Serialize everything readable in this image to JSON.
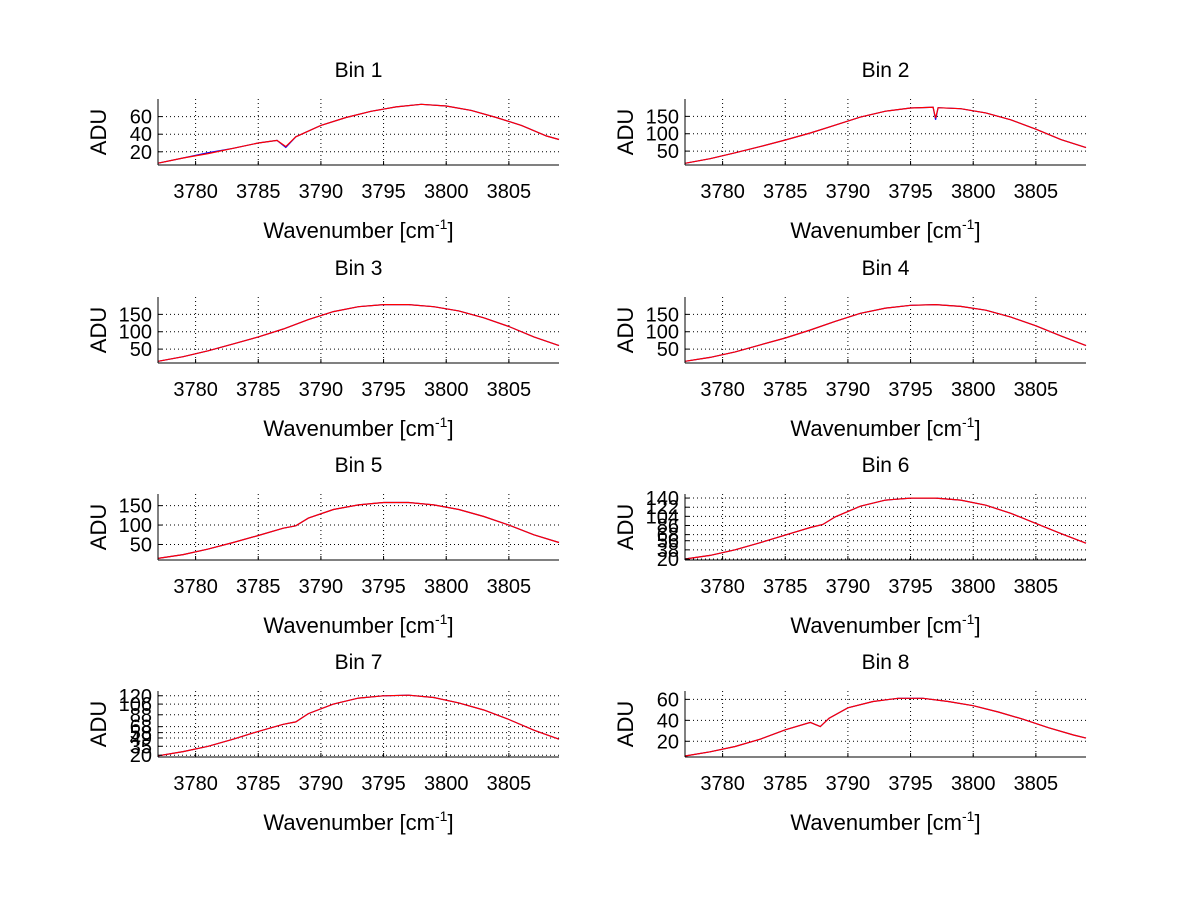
{
  "chart_data": [
    {
      "type": "line",
      "title": "Bin 1",
      "xlabel": "Wavenumber [cm",
      "xlabel_sup": "-1",
      "xlabel_close": "]",
      "ylabel": "ADU",
      "xlim": [
        3777,
        3809
      ],
      "ylim": [
        5,
        80
      ],
      "xticks": [
        3780,
        3785,
        3790,
        3795,
        3800,
        3805
      ],
      "xtick_labels": [
        "3780",
        "3785",
        "3790",
        "3795",
        "3800",
        "3805"
      ],
      "yticks": [
        20,
        40,
        60
      ],
      "ytick_labels": [
        "20",
        "40",
        "60"
      ],
      "grid": true,
      "series": [
        {
          "name": "blue",
          "color": "#0000ff",
          "x": [
            3777,
            3779,
            3781,
            3783,
            3785,
            3786.5,
            3787.2,
            3788,
            3790,
            3792,
            3794,
            3796,
            3798,
            3800,
            3802,
            3804,
            3806,
            3808,
            3809
          ],
          "values": [
            7,
            13,
            19,
            24,
            30,
            33,
            25,
            37,
            50,
            59,
            66,
            71,
            74,
            72,
            67,
            59,
            50,
            38,
            34
          ]
        },
        {
          "name": "red",
          "color": "#ff0000",
          "x": [
            3777,
            3779,
            3781,
            3783,
            3785,
            3786.5,
            3787.2,
            3788,
            3790,
            3792,
            3794,
            3796,
            3798,
            3800,
            3802,
            3804,
            3806,
            3808,
            3809
          ],
          "values": [
            7,
            13,
            18,
            24,
            30,
            33,
            26,
            37,
            50,
            59,
            66,
            71,
            74,
            72,
            67,
            59,
            50,
            38,
            34
          ]
        }
      ]
    },
    {
      "type": "line",
      "title": "Bin 2",
      "xlabel": "Wavenumber [cm",
      "xlabel_sup": "-1",
      "xlabel_close": "]",
      "ylabel": "ADU",
      "xlim": [
        3777,
        3809
      ],
      "ylim": [
        10,
        200
      ],
      "xticks": [
        3780,
        3785,
        3790,
        3795,
        3800,
        3805
      ],
      "xtick_labels": [
        "3780",
        "3785",
        "3790",
        "3795",
        "3800",
        "3805"
      ],
      "yticks": [
        50,
        100,
        150
      ],
      "ytick_labels": [
        "50",
        "100",
        "150"
      ],
      "grid": true,
      "series": [
        {
          "name": "blue",
          "color": "#0000ff",
          "x": [
            3777,
            3779,
            3781,
            3783,
            3785,
            3787,
            3789,
            3791,
            3793,
            3795,
            3796.8,
            3797,
            3797.2,
            3799,
            3801,
            3803,
            3805,
            3807,
            3809
          ],
          "values": [
            15,
            28,
            45,
            63,
            82,
            102,
            125,
            148,
            165,
            174,
            176,
            140,
            175,
            172,
            160,
            140,
            113,
            83,
            60
          ]
        },
        {
          "name": "red",
          "color": "#ff0000",
          "x": [
            3777,
            3779,
            3781,
            3783,
            3785,
            3787,
            3789,
            3791,
            3793,
            3795,
            3796.8,
            3797,
            3797.2,
            3799,
            3801,
            3803,
            3805,
            3807,
            3809
          ],
          "values": [
            15,
            28,
            45,
            63,
            82,
            102,
            125,
            148,
            165,
            174,
            176,
            145,
            175,
            172,
            160,
            140,
            113,
            83,
            60
          ]
        }
      ]
    },
    {
      "type": "line",
      "title": "Bin 3",
      "xlabel": "Wavenumber [cm",
      "xlabel_sup": "-1",
      "xlabel_close": "]",
      "ylabel": "ADU",
      "xlim": [
        3777,
        3809
      ],
      "ylim": [
        10,
        200
      ],
      "xticks": [
        3780,
        3785,
        3790,
        3795,
        3800,
        3805
      ],
      "xtick_labels": [
        "3780",
        "3785",
        "3790",
        "3795",
        "3800",
        "3805"
      ],
      "yticks": [
        50,
        100,
        150
      ],
      "ytick_labels": [
        "50",
        "100",
        "150"
      ],
      "grid": true,
      "series": [
        {
          "name": "blue",
          "color": "#0000ff",
          "x": [
            3777,
            3779,
            3781,
            3783,
            3785,
            3787,
            3789,
            3791,
            3793,
            3795,
            3797,
            3799,
            3801,
            3803,
            3805,
            3807,
            3809
          ],
          "values": [
            15,
            28,
            45,
            65,
            85,
            108,
            135,
            158,
            172,
            178,
            178,
            172,
            160,
            140,
            115,
            85,
            60
          ]
        },
        {
          "name": "red",
          "color": "#ff0000",
          "x": [
            3777,
            3779,
            3781,
            3783,
            3785,
            3787,
            3789,
            3791,
            3793,
            3795,
            3797,
            3799,
            3801,
            3803,
            3805,
            3807,
            3809
          ],
          "values": [
            15,
            28,
            45,
            65,
            85,
            108,
            135,
            158,
            172,
            178,
            178,
            172,
            160,
            140,
            115,
            85,
            60
          ]
        }
      ]
    },
    {
      "type": "line",
      "title": "Bin 4",
      "xlabel": "Wavenumber [cm",
      "xlabel_sup": "-1",
      "xlabel_close": "]",
      "ylabel": "ADU",
      "xlim": [
        3777,
        3809
      ],
      "ylim": [
        10,
        200
      ],
      "xticks": [
        3780,
        3785,
        3790,
        3795,
        3800,
        3805
      ],
      "xtick_labels": [
        "3780",
        "3785",
        "3790",
        "3795",
        "3800",
        "3805"
      ],
      "yticks": [
        50,
        100,
        150
      ],
      "ytick_labels": [
        "50",
        "100",
        "150"
      ],
      "grid": true,
      "series": [
        {
          "name": "blue",
          "color": "#0000ff",
          "x": [
            3777,
            3779,
            3781,
            3783,
            3785,
            3787,
            3789,
            3791,
            3793,
            3795,
            3797,
            3799,
            3801,
            3803,
            3805,
            3807,
            3809
          ],
          "values": [
            15,
            26,
            42,
            62,
            82,
            105,
            130,
            153,
            168,
            176,
            178,
            173,
            162,
            142,
            117,
            88,
            60
          ]
        },
        {
          "name": "red",
          "color": "#ff0000",
          "x": [
            3777,
            3779,
            3781,
            3783,
            3785,
            3787,
            3789,
            3791,
            3793,
            3795,
            3797,
            3799,
            3801,
            3803,
            3805,
            3807,
            3809
          ],
          "values": [
            15,
            26,
            42,
            62,
            82,
            105,
            130,
            153,
            168,
            176,
            178,
            173,
            162,
            142,
            117,
            88,
            60
          ]
        }
      ]
    },
    {
      "type": "line",
      "title": "Bin 5",
      "xlabel": "Wavenumber [cm",
      "xlabel_sup": "-1",
      "xlabel_close": "]",
      "ylabel": "ADU",
      "xlim": [
        3777,
        3809
      ],
      "ylim": [
        10,
        180
      ],
      "xticks": [
        3780,
        3785,
        3790,
        3795,
        3800,
        3805
      ],
      "xtick_labels": [
        "3780",
        "3785",
        "3790",
        "3795",
        "3800",
        "3805"
      ],
      "yticks": [
        50,
        100,
        150
      ],
      "ytick_labels": [
        "50",
        "100",
        "150"
      ],
      "grid": true,
      "series": [
        {
          "name": "blue",
          "color": "#0000ff",
          "x": [
            3777,
            3779,
            3781,
            3783,
            3785,
            3787,
            3788,
            3789,
            3791,
            3793,
            3795,
            3797,
            3799,
            3801,
            3803,
            3805,
            3807,
            3809
          ],
          "values": [
            14,
            24,
            38,
            55,
            73,
            92,
            98,
            118,
            140,
            152,
            158,
            158,
            152,
            140,
            122,
            100,
            75,
            55
          ]
        },
        {
          "name": "red",
          "color": "#ff0000",
          "x": [
            3777,
            3779,
            3781,
            3783,
            3785,
            3787,
            3788,
            3789,
            3791,
            3793,
            3795,
            3797,
            3799,
            3801,
            3803,
            3805,
            3807,
            3809
          ],
          "values": [
            14,
            24,
            38,
            55,
            73,
            92,
            98,
            118,
            140,
            152,
            158,
            158,
            152,
            140,
            122,
            100,
            75,
            55
          ]
        }
      ]
    },
    {
      "type": "line",
      "title": "Bin 6",
      "xlabel": "Wavenumber [cm",
      "xlabel_sup": "-1",
      "xlabel_close": "]",
      "ylabel": "ADU",
      "xlim": [
        3777,
        3809
      ],
      "ylim": [
        18,
        148
      ],
      "xticks": [
        3780,
        3785,
        3790,
        3795,
        3800,
        3805
      ],
      "xtick_labels": [
        "3780",
        "3785",
        "3790",
        "3795",
        "3800",
        "3805"
      ],
      "yticks": [
        20,
        38,
        56,
        68,
        86,
        104,
        122,
        140
      ],
      "ytick_labels": [
        "20",
        "38",
        "56",
        "68",
        "86",
        "104",
        "122",
        "140"
      ],
      "grid": true,
      "series": [
        {
          "name": "blue",
          "color": "#0000ff",
          "x": [
            3777,
            3779,
            3781,
            3783,
            3785,
            3787,
            3788,
            3789,
            3791,
            3793,
            3795,
            3797,
            3799,
            3801,
            3803,
            3805,
            3807,
            3809
          ],
          "values": [
            20,
            27,
            38,
            52,
            67,
            82,
            88,
            103,
            124,
            136,
            140,
            140,
            136,
            126,
            110,
            90,
            70,
            51
          ]
        },
        {
          "name": "red",
          "color": "#ff0000",
          "x": [
            3777,
            3779,
            3781,
            3783,
            3785,
            3787,
            3788,
            3789,
            3791,
            3793,
            3795,
            3797,
            3799,
            3801,
            3803,
            3805,
            3807,
            3809
          ],
          "values": [
            20,
            27,
            38,
            52,
            67,
            82,
            88,
            103,
            124,
            136,
            140,
            140,
            136,
            126,
            110,
            90,
            70,
            51
          ]
        }
      ]
    },
    {
      "type": "line",
      "title": "Bin 7",
      "xlabel": "Wavenumber [cm",
      "xlabel_sup": "-1",
      "xlabel_close": "]",
      "ylabel": "ADU",
      "xlim": [
        3777,
        3809
      ],
      "ylim": [
        17,
        128
      ],
      "xticks": [
        3780,
        3785,
        3790,
        3795,
        3800,
        3805
      ],
      "xtick_labels": [
        "3780",
        "3785",
        "3790",
        "3795",
        "3800",
        "3805"
      ],
      "yticks": [
        20,
        35,
        49,
        58,
        68,
        88,
        106,
        120
      ],
      "ytick_labels": [
        "20",
        "35",
        "49",
        "58",
        "68",
        "88",
        "106",
        "120"
      ],
      "grid": true,
      "series": [
        {
          "name": "blue",
          "color": "#0000ff",
          "x": [
            3777,
            3779,
            3781,
            3783,
            3785,
            3787,
            3788,
            3789,
            3791,
            3793,
            3795,
            3797,
            3799,
            3801,
            3803,
            3805,
            3807,
            3809
          ],
          "values": [
            19,
            26,
            35,
            47,
            60,
            72,
            76,
            90,
            106,
            116,
            120,
            121,
            117,
            108,
            96,
            80,
            62,
            47
          ]
        },
        {
          "name": "red",
          "color": "#ff0000",
          "x": [
            3777,
            3779,
            3781,
            3783,
            3785,
            3787,
            3788,
            3789,
            3791,
            3793,
            3795,
            3797,
            3799,
            3801,
            3803,
            3805,
            3807,
            3809
          ],
          "values": [
            19,
            26,
            35,
            47,
            60,
            72,
            76,
            90,
            106,
            116,
            120,
            121,
            117,
            108,
            96,
            80,
            62,
            47
          ]
        }
      ]
    },
    {
      "type": "line",
      "title": "Bin 8",
      "xlabel": "Wavenumber [cm",
      "xlabel_sup": "-1",
      "xlabel_close": "]",
      "ylabel": "ADU",
      "xlim": [
        3777,
        3809
      ],
      "ylim": [
        5,
        68
      ],
      "xticks": [
        3780,
        3785,
        3790,
        3795,
        3800,
        3805
      ],
      "xtick_labels": [
        "3780",
        "3785",
        "3790",
        "3795",
        "3800",
        "3805"
      ],
      "yticks": [
        20,
        40,
        60
      ],
      "ytick_labels": [
        "20",
        "40",
        "60"
      ],
      "grid": true,
      "series": [
        {
          "name": "blue",
          "color": "#0000ff",
          "x": [
            3777,
            3779,
            3781,
            3783,
            3785,
            3787,
            3787.8,
            3788.5,
            3790,
            3792,
            3794,
            3796,
            3798,
            3800,
            3802,
            3804,
            3806,
            3808,
            3809
          ],
          "values": [
            6,
            10,
            15,
            22,
            31,
            38,
            34,
            42,
            52,
            58,
            61,
            61,
            58,
            54,
            48,
            41,
            33,
            26,
            23
          ]
        },
        {
          "name": "red",
          "color": "#ff0000",
          "x": [
            3777,
            3779,
            3781,
            3783,
            3785,
            3787,
            3787.8,
            3788.5,
            3790,
            3792,
            3794,
            3796,
            3798,
            3800,
            3802,
            3804,
            3806,
            3808,
            3809
          ],
          "values": [
            6,
            10,
            15,
            22,
            31,
            38,
            34,
            42,
            52,
            58,
            61,
            61,
            58,
            54,
            48,
            41,
            33,
            26,
            23
          ]
        }
      ]
    }
  ]
}
